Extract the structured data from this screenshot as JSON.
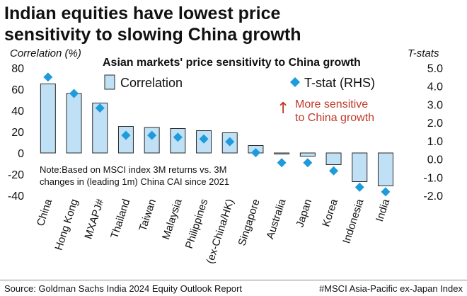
{
  "headline": {
    "line1": "Indian equities have lowest price",
    "line2": "sensitivity to slowing China growth"
  },
  "colors": {
    "bar_fill": "#bfe0f5",
    "bar_stroke": "#2a2a2a",
    "marker": "#1e9bdc",
    "annotation": "#c0392b",
    "text": "#111111"
  },
  "chart_data": {
    "type": "bar",
    "title": "Asian markets' price sensitivity to China growth",
    "ylabel": "Correlation (%)",
    "y2label": "T-stats",
    "categories": [
      "China",
      "Hong Kong",
      "MXAPJ#",
      "Thailand",
      "Taiwan",
      "Malaysia",
      "Philippines",
      "(ex-China/HK)",
      "Singapore",
      "Australia",
      "Japan",
      "Korea",
      "Indonesia",
      "India"
    ],
    "x_tick_labels": [
      "China",
      "Hong Kong",
      "MXAPJ#",
      "Thailand",
      "Taiwan",
      "Malaysia",
      "Philippines",
      "(ex-China/HK)",
      "Singapore",
      "Australia",
      "Japan",
      "Korea",
      "Indonesia",
      "India"
    ],
    "series": [
      {
        "name": "Correlation",
        "type": "bar",
        "axis": "left",
        "values": [
          65,
          56,
          47,
          25,
          24,
          23,
          21,
          19,
          7,
          -1,
          -3,
          -11,
          -27,
          -31
        ]
      },
      {
        "name": "T-stat (RHS)",
        "type": "scatter",
        "axis": "right",
        "values": [
          4.5,
          3.6,
          2.8,
          1.3,
          1.3,
          1.2,
          1.1,
          0.95,
          0.35,
          -0.2,
          -0.2,
          -0.65,
          -1.55,
          -1.8
        ]
      }
    ],
    "ylim": [
      -40,
      80
    ],
    "y2lim": [
      -2.0,
      5.0
    ],
    "y_ticks": [
      "80",
      "60",
      "40",
      "20",
      "0",
      "-20",
      "-40"
    ],
    "y2_ticks": [
      "5.0",
      "4.0",
      "3.0",
      "2.0",
      "1.0",
      "0.0",
      "-1.0",
      "-2.0"
    ],
    "legend_position": "top",
    "annotation_arrow": "↑",
    "annotation_line1": "More sensitive",
    "annotation_line2": "to China growth",
    "note_line1": "Note:Based on MSCI index 3M returns vs. 3M",
    "note_line2": "changes in (leading 1m) China CAI since 2021",
    "grid": false
  },
  "footer": {
    "source": "Source: Goldman Sachs India 2024 Equity Outlook Report",
    "footnote": "#MSCI Asia-Pacific ex-Japan Index"
  }
}
